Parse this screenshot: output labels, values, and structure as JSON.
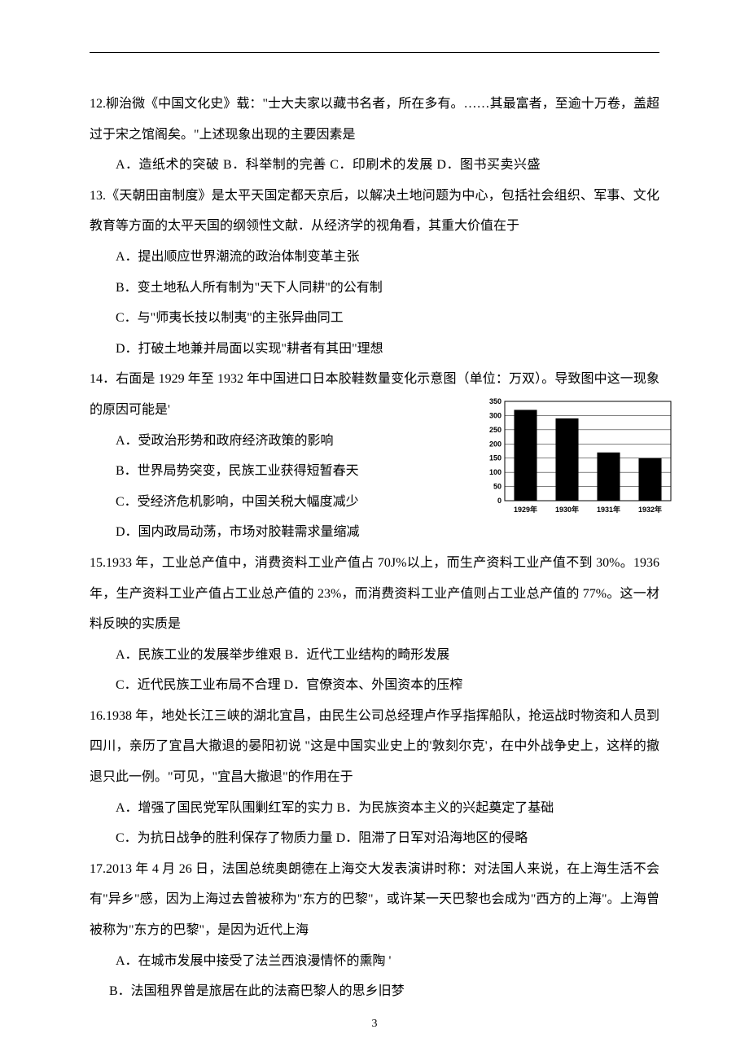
{
  "page_number": "3",
  "hr_color": "#000000",
  "q12": {
    "stem": "12.柳治微《中国文化史》载：\"士大夫家以藏书名者，所在多有。……其最富者，至逾十万卷，盖超过于宋之馆阁矣。\"上述现象出现的主要因素是",
    "options_line": "A．造纸术的突破   B．科举制的完善     C．印刷术的发展     D．图书买卖兴盛"
  },
  "q13": {
    "stem": "13.《天朝田亩制度》是太平天国定都天京后，以解决土地问题为中心，包括社会组织、军事、文化教育等方面的太平天国的纲领性文献．从经济学的视角看，其重大价值在于",
    "A": "A．提出顺应世界潮流的政治体制变革主张",
    "B": "B．变土地私人所有制为\"天下人同耕\"的公有制",
    "C": "C．与\"师夷长技以制夷\"的主张异曲同工",
    "D": "D．打破土地兼并局面以实现\"耕者有其田\"理想"
  },
  "q14": {
    "stem": "14．右面是 1929 年至 1932 年中国进口日本胶鞋数量变化示意图（单位：万双）。导致图中这一现象的原因可能是'",
    "A": "A．受政治形势和政府经济政策的影响",
    "B": "B．世界局势突变，民族工业获得短暂春天",
    "C": "C．受经济危机影响，中国关税大幅度减少",
    "D": "D．国内政局动荡，市场对胶鞋需求量缩减",
    "chart": {
      "type": "bar",
      "categories": [
        "1929年",
        "1930年",
        "1931年",
        "1932年"
      ],
      "values": [
        320,
        290,
        170,
        150
      ],
      "ylim": [
        0,
        350
      ],
      "ytick_step": 50,
      "yticks": [
        "0",
        "50",
        "100",
        "150",
        "200",
        "250",
        "300",
        "350"
      ],
      "bar_color": "#000000",
      "bar_width": 0.55,
      "background_color": "#ffffff",
      "grid_color": "#000000",
      "border_color": "#000000",
      "label_fontsize": 9,
      "tick_fontsize": 9,
      "aspect": "wide"
    }
  },
  "q15": {
    "stem": "15.1933 年，工业总产值中，消费资料工业产值占 70J%以上，而生产资料工业产值不到 30%。1936 年，生产资料工业产值占工业总产值的 23%，而消费资料工业产值则占工业总产值的 77%。这一材料反映的实质是",
    "line1": "A．民族工业的发展举步维艰     B．近代工业结构的畸形发展",
    "line2": "C．近代民族工业布局不合理     D．官僚资本、外国资本的压榨"
  },
  "q16": {
    "stem": "16.1938 年，地处长江三峡的湖北宜昌，由民生公司总经理卢作孚指挥船队，抢运战时物资和人员到四川，亲历了宜昌大撤退的晏阳初说 \"这是中国实业史上的'敦刻尔克'，在中外战争史上，这样的撤退只此一例。\"可见，\"宜昌大撤退\"的作用在于",
    "line1": "A．增强了国民党军队围剿红军的实力     B．为民族资本主义的兴起奠定了基础",
    "line2": "C．为抗日战争的胜利保存了物质力量     D．阻滞了日军对沿海地区的侵略"
  },
  "q17": {
    "stem": "17.2013 年 4 月 26 日，法国总统奥朗德在上海交大发表演讲时称：对法国人来说，在上海生活不会有\"异乡\"感，因为上海过去曾被称为\"东方的巴黎\"，或许某一天巴黎也会成为\"西方的上海\"。上海曾被称为\"东方的巴黎\"，是因为近代上海",
    "A": "A．在城市发展中接受了法兰西浪漫情怀的熏陶     '",
    "B": "B．法国租界曾是旅居在此的法裔巴黎人的思乡旧梦"
  }
}
